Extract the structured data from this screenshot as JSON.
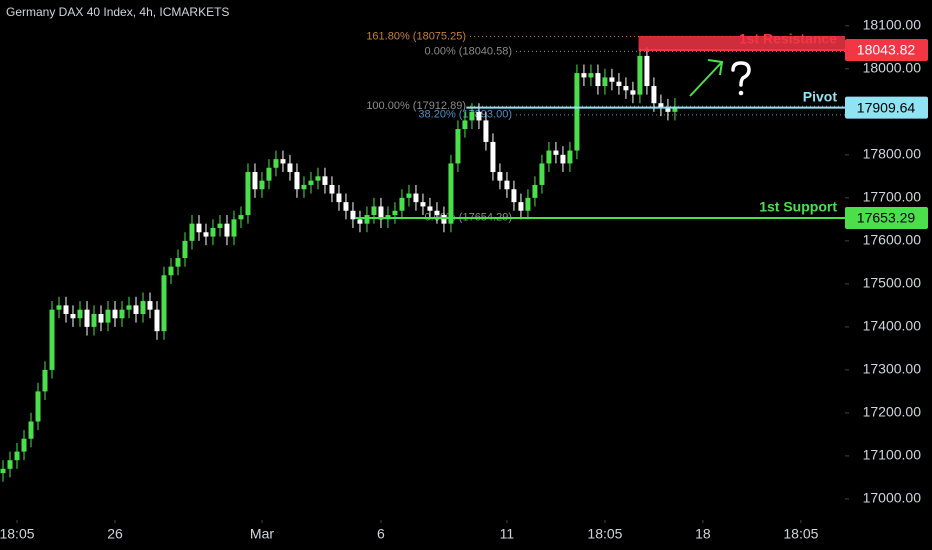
{
  "chart_data": {
    "type": "candlestick",
    "title": "Germany DAX 40 Index, 4h, ICMARKETS",
    "up_color": "#4be04b",
    "down_color": "#ffffff",
    "xlim": [
      -0.43,
      120.3
    ],
    "xticks": [
      {
        "value": 2,
        "label": "18:05"
      },
      {
        "value": 16,
        "label": "26"
      },
      {
        "value": 37,
        "label": "Mar"
      },
      {
        "value": 54,
        "label": "6"
      },
      {
        "value": 72,
        "label": "11"
      },
      {
        "value": 86,
        "label": "18:05"
      },
      {
        "value": 100,
        "label": "18"
      },
      {
        "value": 114,
        "label": "18:05"
      }
    ],
    "ylim": [
      16951,
      18160
    ],
    "yticks": [
      {
        "value": 17000,
        "label": "17000.00"
      },
      {
        "value": 17100,
        "label": "17100.00"
      },
      {
        "value": 17200,
        "label": "17200.00"
      },
      {
        "value": 17300,
        "label": "17300.00"
      },
      {
        "value": 17400,
        "label": "17400.00"
      },
      {
        "value": 17500,
        "label": "17500.00"
      },
      {
        "value": 17600,
        "label": "17600.00"
      },
      {
        "value": 17700,
        "label": "17700.00"
      },
      {
        "value": 17800,
        "label": "17800.00"
      },
      {
        "value": 18000,
        "label": "18000.00"
      },
      {
        "value": 18100,
        "label": "18100.00"
      }
    ],
    "open": [
      17060,
      17070,
      17090,
      17110,
      17140,
      17180,
      17250,
      17300,
      17440,
      17450,
      17430,
      17420,
      17440,
      17400,
      17430,
      17410,
      17440,
      17420,
      17440,
      17450,
      17430,
      17460,
      17440,
      17390,
      17520,
      17540,
      17560,
      17600,
      17640,
      17620,
      17610,
      17630,
      17640,
      17610,
      17650,
      17660,
      17760,
      17720,
      17740,
      17770,
      17790,
      17780,
      17760,
      17720,
      17730,
      17740,
      17750,
      17730,
      17710,
      17690,
      17670,
      17650,
      17640,
      17660,
      17680,
      17650,
      17660,
      17670,
      17700,
      17710,
      17690,
      17680,
      17670,
      17660,
      17640,
      17780,
      17860,
      17880,
      17900,
      17880,
      17830,
      17760,
      17740,
      17720,
      17690,
      17670,
      17700,
      17730,
      17780,
      17810,
      17800,
      17780,
      17810,
      17990,
      17980,
      17990,
      17960,
      17980,
      17970,
      17960,
      17950,
      17940,
      18030,
      17960,
      17920,
      17910,
      17900
    ],
    "high": [
      17090,
      17110,
      17130,
      17160,
      17200,
      17270,
      17320,
      17460,
      17470,
      17470,
      17450,
      17460,
      17460,
      17450,
      17450,
      17460,
      17460,
      17460,
      17470,
      17470,
      17480,
      17480,
      17460,
      17540,
      17560,
      17580,
      17620,
      17660,
      17660,
      17640,
      17650,
      17660,
      17660,
      17670,
      17680,
      17780,
      17780,
      17760,
      17790,
      17810,
      17810,
      17800,
      17780,
      17750,
      17760,
      17770,
      17770,
      17750,
      17730,
      17710,
      17690,
      17670,
      17680,
      17700,
      17700,
      17680,
      17690,
      17720,
      17730,
      17730,
      17710,
      17700,
      17690,
      17680,
      17800,
      17880,
      17900,
      17920,
      17920,
      17900,
      17850,
      17780,
      17760,
      17740,
      17710,
      17720,
      17750,
      17800,
      17830,
      17830,
      17820,
      17830,
      18010,
      18010,
      18010,
      18010,
      18000,
      18000,
      17990,
      17980,
      17970,
      18050,
      18050,
      17980,
      17940,
      17930,
      17932
    ],
    "low": [
      17040,
      17050,
      17070,
      17090,
      17120,
      17160,
      17230,
      17280,
      17420,
      17410,
      17400,
      17400,
      17380,
      17380,
      17390,
      17390,
      17400,
      17400,
      17420,
      17410,
      17410,
      17420,
      17370,
      17370,
      17500,
      17520,
      17540,
      17580,
      17600,
      17590,
      17590,
      17610,
      17590,
      17590,
      17630,
      17640,
      17700,
      17700,
      17720,
      17750,
      17760,
      17740,
      17700,
      17700,
      17710,
      17720,
      17710,
      17690,
      17670,
      17650,
      17630,
      17620,
      17620,
      17640,
      17630,
      17630,
      17640,
      17650,
      17680,
      17670,
      17660,
      17650,
      17640,
      17620,
      17620,
      17760,
      17840,
      17860,
      17860,
      17810,
      17740,
      17720,
      17700,
      17670,
      17650,
      17650,
      17680,
      17710,
      17760,
      17780,
      17760,
      17760,
      17790,
      17960,
      17960,
      17940,
      17940,
      17950,
      17940,
      17930,
      17920,
      17920,
      17940,
      17900,
      17890,
      17880,
      17880
    ],
    "close": [
      17070,
      17090,
      17110,
      17140,
      17180,
      17250,
      17300,
      17440,
      17450,
      17430,
      17420,
      17440,
      17400,
      17430,
      17410,
      17440,
      17420,
      17440,
      17450,
      17430,
      17460,
      17440,
      17390,
      17520,
      17540,
      17560,
      17600,
      17640,
      17620,
      17610,
      17630,
      17640,
      17610,
      17650,
      17660,
      17760,
      17720,
      17740,
      17770,
      17790,
      17780,
      17760,
      17720,
      17730,
      17740,
      17750,
      17730,
      17710,
      17690,
      17670,
      17650,
      17640,
      17660,
      17680,
      17650,
      17660,
      17670,
      17700,
      17710,
      17690,
      17680,
      17670,
      17660,
      17640,
      17780,
      17860,
      17880,
      17900,
      17880,
      17830,
      17760,
      17740,
      17720,
      17690,
      17670,
      17700,
      17730,
      17780,
      17810,
      17800,
      17780,
      17810,
      17990,
      17980,
      17990,
      17960,
      17980,
      17970,
      17960,
      17950,
      17940,
      18030,
      17960,
      17920,
      17910,
      17900,
      17912
    ],
    "levels": [
      {
        "name": "1st Resistance",
        "value": 18043.82,
        "color": "#f23645",
        "from": 90.8
      },
      {
        "name": "Pivot",
        "value": 17909.64,
        "color": "#8fe3f2",
        "from": 66.2
      },
      {
        "name": "1st Support",
        "value": 17653.29,
        "color": "#4be04b",
        "from": 50.3
      }
    ],
    "fib_levels": [
      {
        "label": "161.80% (18075.25)",
        "value": 18075.25,
        "color": "#c77f3a"
      },
      {
        "label": "0.00% (18040.58)",
        "value": 18040.58,
        "color": "#8a8a8a"
      },
      {
        "label": "100.00% (17912.89)",
        "value": 17912.89,
        "color": "#8a8a8a"
      },
      {
        "label": "38.20% (17893.00)",
        "value": 17893.0,
        "color": "#4a8fc7"
      },
      {
        "label": "0.00% (17654.29)",
        "value": 17654.29,
        "color": "#8a8a8a"
      }
    ]
  }
}
